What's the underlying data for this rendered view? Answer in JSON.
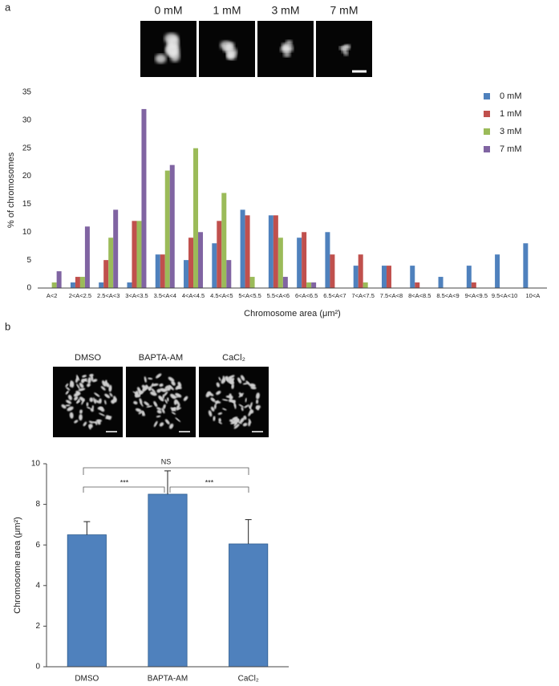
{
  "panel_labels": [
    "a",
    "b"
  ],
  "images_a": [
    "0 mM",
    "1 mM",
    "3 mM",
    "7 mM"
  ],
  "images_b": [
    "DMSO",
    "BAPTA-AM",
    "CaCl₂"
  ],
  "chart_data": [
    {
      "type": "bar",
      "xlabel": "Chromosome area (μm²)",
      "ylabel": "% of chromosomes",
      "categories": [
        "A<2",
        "2<A<2.5",
        "2.5<A<3",
        "3<A<3.5",
        "3.5<A<4",
        "4<A<4.5",
        "4.5<A<5",
        "5<A<5.5",
        "5.5<A<6",
        "6<A<6.5",
        "6.5<A<7",
        "7<A<7.5",
        "7.5<A<8",
        "8<A<8.5",
        "8.5<A<9",
        "9<A<9.5",
        "9.5<A<10",
        "10<A"
      ],
      "series": [
        {
          "name": "0 mM",
          "color": "#4f81bd",
          "values": [
            0,
            1,
            1,
            1,
            6,
            5,
            8,
            14,
            13,
            9,
            10,
            4,
            4,
            4,
            2,
            4,
            6,
            8
          ]
        },
        {
          "name": "1 mM",
          "color": "#c0504d",
          "values": [
            0,
            2,
            5,
            12,
            6,
            9,
            12,
            13,
            13,
            10,
            6,
            6,
            4,
            1,
            0,
            1,
            0,
            0
          ]
        },
        {
          "name": "3 mM",
          "color": "#9bbb59",
          "values": [
            1,
            2,
            9,
            12,
            21,
            25,
            17,
            2,
            9,
            1,
            0,
            1,
            0,
            0,
            0,
            0,
            0,
            0
          ]
        },
        {
          "name": "7 mM",
          "color": "#8064a2",
          "values": [
            3,
            11,
            14,
            32,
            22,
            10,
            5,
            0,
            2,
            1,
            0,
            0,
            0,
            0,
            0,
            0,
            0,
            0
          ]
        }
      ],
      "ylim": [
        0,
        35
      ],
      "yticks": [
        0,
        5,
        10,
        15,
        20,
        25,
        30,
        35
      ],
      "legend": "upper right"
    },
    {
      "type": "bar",
      "ylabel": "Chromosome area (μm²)",
      "categories": [
        "DMSO",
        "BAPTA-AM",
        "CaCl₂"
      ],
      "values": [
        6.5,
        8.5,
        6.05
      ],
      "errors": [
        0.65,
        1.15,
        1.2
      ],
      "color": "#4f81bd",
      "ylim": [
        0,
        10
      ],
      "yticks": [
        0,
        2,
        4,
        6,
        8,
        10
      ],
      "annotations": [
        "***",
        "***",
        "NS"
      ]
    }
  ]
}
